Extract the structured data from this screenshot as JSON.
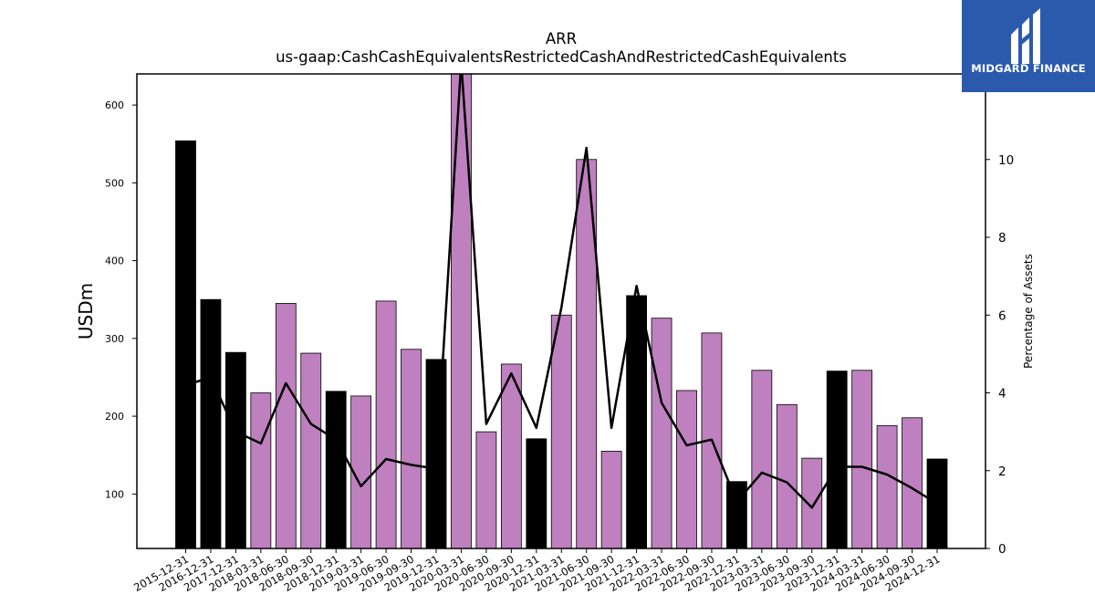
{
  "chart_data": {
    "type": "bar",
    "title": "ARR",
    "subtitle": "us-gaap:CashCashEquivalentsRestrictedCashAndRestrictedCashEquivalents",
    "ylabel": "USDm",
    "y2label": "Percentage of Assets",
    "ylim": [
      30,
      640
    ],
    "y2lim": [
      0,
      12.2
    ],
    "yticks": [
      100,
      200,
      300,
      400,
      500,
      600
    ],
    "y2ticks": [
      0,
      2,
      4,
      6,
      8,
      10
    ],
    "categories": [
      "2015-12-31",
      "2016-12-31",
      "2017-12-31",
      "2018-03-31",
      "2018-06-30",
      "2018-09-30",
      "2018-12-31",
      "2019-03-31",
      "2019-06-30",
      "2019-09-30",
      "2019-12-31",
      "2020-03-31",
      "2020-06-30",
      "2020-09-30",
      "2020-12-31",
      "2021-03-31",
      "2021-06-30",
      "2021-09-30",
      "2021-12-31",
      "2022-03-31",
      "2022-06-30",
      "2022-09-30",
      "2022-12-31",
      "2023-03-31",
      "2023-06-30",
      "2023-09-30",
      "2023-12-31",
      "2024-03-31",
      "2024-06-30",
      "2024-09-30",
      "2024-12-31"
    ],
    "series": [
      {
        "type": "bar",
        "values": [
          554,
          350,
          282,
          230,
          345,
          281,
          232,
          226,
          348,
          286,
          273,
          648,
          180,
          267,
          171,
          330,
          530,
          155,
          355,
          326,
          233,
          307,
          116,
          259,
          215,
          146,
          258,
          259,
          188,
          198,
          145
        ],
        "annual": [
          true,
          true,
          true,
          false,
          false,
          false,
          true,
          false,
          false,
          false,
          true,
          false,
          false,
          false,
          true,
          false,
          false,
          false,
          true,
          false,
          false,
          false,
          true,
          false,
          false,
          false,
          true,
          false,
          false,
          false,
          true
        ],
        "annual_color": "#000000",
        "quarter_color": "#bf80bf"
      },
      {
        "type": "line",
        "axis": "right",
        "values": [
          4.2,
          4.4,
          3.0,
          2.7,
          4.25,
          3.2,
          2.8,
          1.6,
          2.3,
          2.15,
          2.05,
          12.5,
          3.2,
          4.5,
          3.1,
          6.2,
          10.3,
          3.1,
          6.75,
          3.75,
          2.65,
          2.8,
          1.2,
          1.95,
          1.7,
          1.05,
          2.1,
          2.1,
          1.9,
          1.55,
          1.15
        ],
        "color": "#000000"
      }
    ]
  },
  "logo": {
    "text": "MIDGARD FINANCE",
    "color": "#2b5aad"
  }
}
